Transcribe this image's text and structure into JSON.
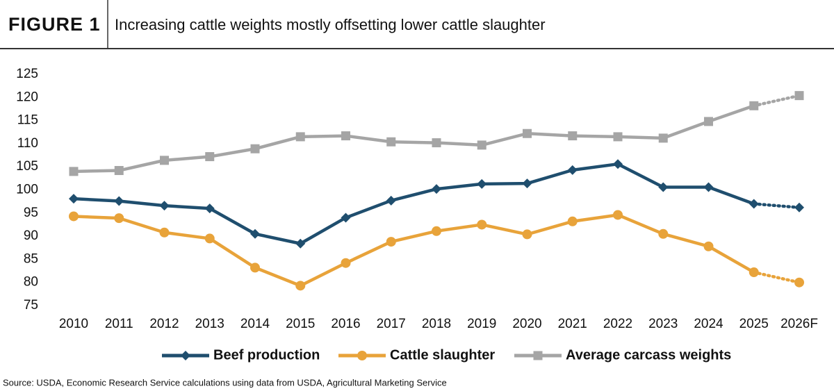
{
  "chart_data": {
    "type": "line",
    "figure_label": "FIGURE 1",
    "title": "Increasing cattle weights mostly offsetting lower cattle slaughter",
    "source": "Source: USDA, Economic Research Service calculations using data from USDA, Agricultural Marketing Service",
    "categories": [
      "2010",
      "2011",
      "2012",
      "2013",
      "2014",
      "2015",
      "2016",
      "2017",
      "2018",
      "2019",
      "2020",
      "2021",
      "2022",
      "2023",
      "2024",
      "2025",
      "2026F"
    ],
    "series": [
      {
        "name": "Beef production",
        "color": "#1f4e6e",
        "marker": "diamond",
        "values": [
          98.1,
          97.6,
          96.6,
          96.0,
          90.5,
          88.4,
          94.0,
          97.7,
          100.2,
          101.3,
          101.4,
          104.3,
          105.6,
          100.6,
          100.6,
          97.0,
          96.2
        ]
      },
      {
        "name": "Cattle slaughter",
        "color": "#e8a33a",
        "marker": "circle",
        "values": [
          94.3,
          93.9,
          90.8,
          89.5,
          83.2,
          79.3,
          84.2,
          88.8,
          91.1,
          92.5,
          90.4,
          93.2,
          94.6,
          90.5,
          87.8,
          82.2,
          80.0
        ]
      },
      {
        "name": "Average carcass weights",
        "color": "#a5a5a5",
        "marker": "square",
        "values": [
          104.0,
          104.2,
          106.4,
          107.2,
          108.9,
          111.5,
          111.7,
          110.4,
          110.2,
          109.7,
          112.2,
          111.7,
          111.5,
          111.2,
          114.8,
          118.2,
          120.4
        ]
      }
    ],
    "ylim": [
      75,
      125
    ],
    "yticks": [
      75,
      80,
      85,
      90,
      95,
      100,
      105,
      110,
      115,
      120,
      125
    ],
    "grid": false,
    "dashed_last_segment": true,
    "legend": "bottom"
  }
}
